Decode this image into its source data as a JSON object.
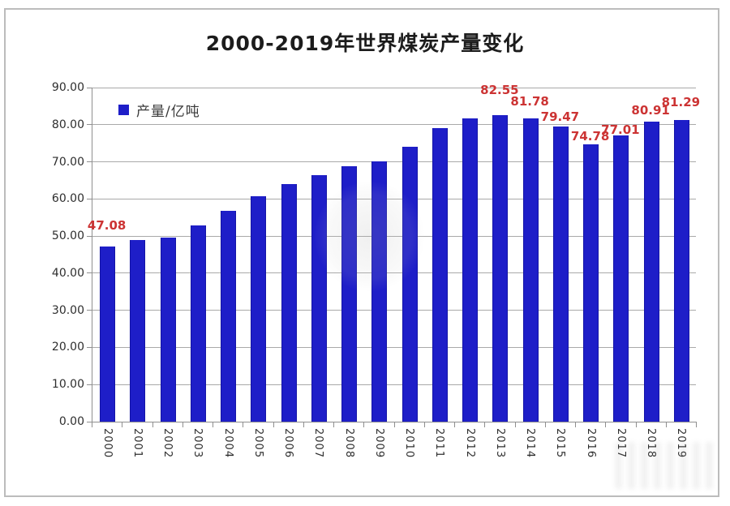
{
  "chart_data": {
    "type": "bar",
    "title": "2000-2019年世界煤炭产量变化",
    "legend": [
      {
        "label": "产量/亿吨",
        "color": "#1e1ec8"
      }
    ],
    "categories": [
      "2000",
      "2001",
      "2002",
      "2003",
      "2004",
      "2005",
      "2006",
      "2007",
      "2008",
      "2009",
      "2010",
      "2011",
      "2012",
      "2013",
      "2014",
      "2015",
      "2016",
      "2017",
      "2018",
      "2019"
    ],
    "series": [
      {
        "name": "产量/亿吨",
        "values": [
          47.08,
          48.9,
          49.5,
          52.8,
          56.9,
          60.7,
          63.9,
          66.3,
          68.9,
          70.1,
          74.0,
          79.0,
          81.6,
          82.55,
          81.78,
          79.47,
          74.78,
          77.01,
          80.91,
          81.29
        ]
      }
    ],
    "data_labels": [
      {
        "index": 0,
        "text": "47.08"
      },
      {
        "index": 13,
        "text": "82.55"
      },
      {
        "index": 14,
        "text": "81.78"
      },
      {
        "index": 15,
        "text": "79.47"
      },
      {
        "index": 16,
        "text": "74.78"
      },
      {
        "index": 17,
        "text": "77.01"
      },
      {
        "index": 18,
        "text": "80.91"
      },
      {
        "index": 19,
        "text": "81.29"
      }
    ],
    "ylim": [
      0,
      90
    ],
    "ytick_step": 10,
    "yticks": [
      "0.00",
      "10.00",
      "20.00",
      "30.00",
      "40.00",
      "50.00",
      "60.00",
      "70.00",
      "80.00",
      "90.00"
    ],
    "grid": true,
    "legend_position": "top-left-inside",
    "bar_color": "#1e1ec8",
    "data_label_color": "#cc3333",
    "grid_color": "#a9a9a9",
    "axis_color": "#8f8f8f",
    "text_color": "#2e2e2e"
  }
}
